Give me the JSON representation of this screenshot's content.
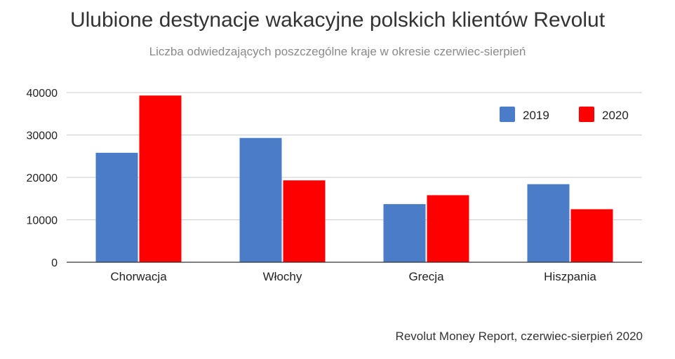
{
  "chart_data": {
    "type": "bar",
    "title": "Ulubione destynacje wakacyjne polskich klientów Revolut",
    "subtitle": "Liczba odwiedzających poszczególne kraje w okresie czerwiec-sierpień",
    "source": "Revolut Money Report, czerwiec-sierpień 2020",
    "categories": [
      "Chorwacja",
      "Włochy",
      "Grecja",
      "Hiszpania"
    ],
    "series": [
      {
        "name": "2019",
        "color": "#4a7cc7",
        "values": [
          25800,
          29300,
          13700,
          18400
        ]
      },
      {
        "name": "2020",
        "color": "#ff0000",
        "values": [
          39300,
          19300,
          15800,
          12500
        ]
      }
    ],
    "ylim": [
      0,
      40000
    ],
    "yticks": [
      "0",
      "10000",
      "20000",
      "30000",
      "40000"
    ],
    "xlabel": "",
    "ylabel": "",
    "grid": true,
    "legend_position": "top-right"
  }
}
